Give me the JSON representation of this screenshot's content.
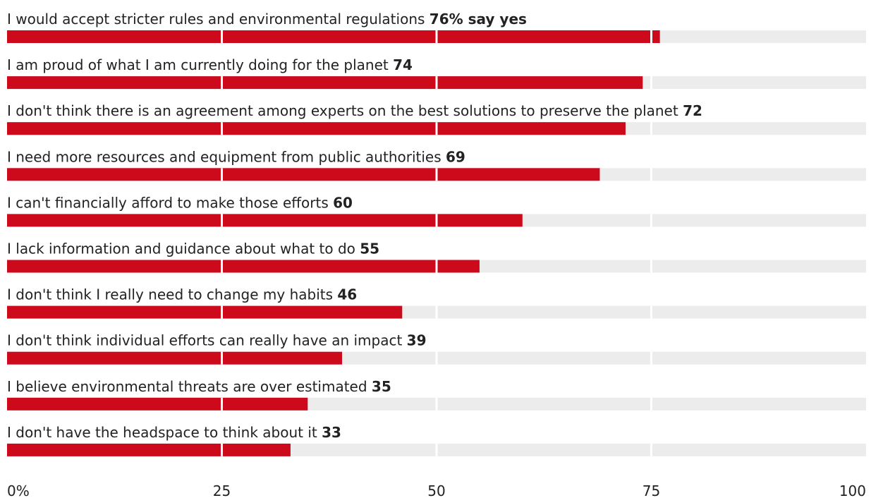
{
  "chart_data": {
    "type": "bar",
    "orientation": "horizontal",
    "title": "",
    "xlabel": "",
    "ylabel": "",
    "xlim": [
      0,
      100
    ],
    "grid": true,
    "categories": [
      "I would accept stricter rules and environmental regulations",
      "I am proud of what I am currently doing for the planet",
      "I don't think there is an agreement among experts on the best solutions to preserve the planet",
      "I need more resources and equipment from public authorities",
      "I can't financially afford to make those efforts",
      "I lack information and guidance about what to do",
      "I don't think I really need to change my habits",
      "I don't think individual efforts can really have an impact",
      "I believe environmental threats are over estimated",
      "I don't have the headspace to think about it"
    ],
    "value_labels": [
      "76% say yes",
      "74",
      "72",
      "69",
      "60",
      "55",
      "46",
      "39",
      "35",
      "33"
    ],
    "values": [
      76,
      74,
      72,
      69,
      60,
      55,
      46,
      39,
      35,
      33
    ],
    "x_ticks": [
      {
        "value": 0,
        "label": "0%"
      },
      {
        "value": 25,
        "label": "25"
      },
      {
        "value": 50,
        "label": "50"
      },
      {
        "value": 75,
        "label": "75"
      },
      {
        "value": 100,
        "label": "100"
      }
    ],
    "colors": {
      "bar": "#cc0a1c",
      "track": "#ececec",
      "gridline": "#ffffff"
    }
  }
}
